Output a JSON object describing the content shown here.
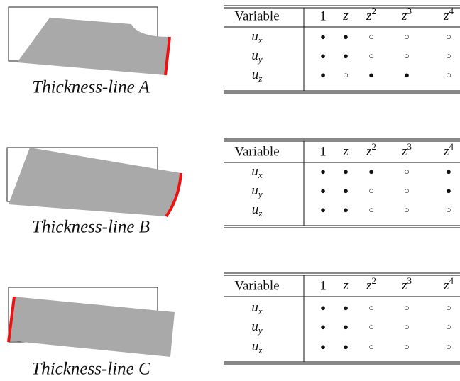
{
  "panels": [
    {
      "caption": "Thickness-line A",
      "table": {
        "header": [
          "Variable",
          "1",
          {
            "base": "z"
          },
          {
            "base": "z",
            "sup": "2"
          },
          {
            "base": "z",
            "sup": "3"
          },
          {
            "base": "z",
            "sup": "4"
          }
        ],
        "rows": [
          {
            "label": {
              "base": "u",
              "sub": "x"
            },
            "cells": [
              "●",
              "●",
              "○",
              "○",
              "○"
            ]
          },
          {
            "label": {
              "base": "u",
              "sub": "y"
            },
            "cells": [
              "●",
              "●",
              "○",
              "○",
              "○"
            ]
          },
          {
            "label": {
              "base": "u",
              "sub": "z"
            },
            "cells": [
              "●",
              "○",
              "●",
              "●",
              "○"
            ]
          }
        ]
      }
    },
    {
      "caption": "Thickness-line B",
      "table": {
        "header": [
          "Variable",
          "1",
          {
            "base": "z"
          },
          {
            "base": "z",
            "sup": "2"
          },
          {
            "base": "z",
            "sup": "3"
          },
          {
            "base": "z",
            "sup": "4"
          }
        ],
        "rows": [
          {
            "label": {
              "base": "u",
              "sub": "x"
            },
            "cells": [
              "●",
              "●",
              "●",
              "○",
              "●"
            ]
          },
          {
            "label": {
              "base": "u",
              "sub": "y"
            },
            "cells": [
              "●",
              "●",
              "○",
              "○",
              "●"
            ]
          },
          {
            "label": {
              "base": "u",
              "sub": "z"
            },
            "cells": [
              "●",
              "●",
              "○",
              "○",
              "○"
            ]
          }
        ]
      }
    },
    {
      "caption": "Thickness-line C",
      "table": {
        "header": [
          "Variable",
          "1",
          {
            "base": "z"
          },
          {
            "base": "z",
            "sup": "2"
          },
          {
            "base": "z",
            "sup": "3"
          },
          {
            "base": "z",
            "sup": "4"
          }
        ],
        "rows": [
          {
            "label": {
              "base": "u",
              "sub": "x"
            },
            "cells": [
              "●",
              "●",
              "○",
              "○",
              "○"
            ]
          },
          {
            "label": {
              "base": "u",
              "sub": "y"
            },
            "cells": [
              "●",
              "●",
              "○",
              "○",
              "○"
            ]
          },
          {
            "label": {
              "base": "u",
              "sub": "z"
            },
            "cells": [
              "●",
              "●",
              "○",
              "○",
              "○"
            ]
          }
        ]
      }
    }
  ]
}
